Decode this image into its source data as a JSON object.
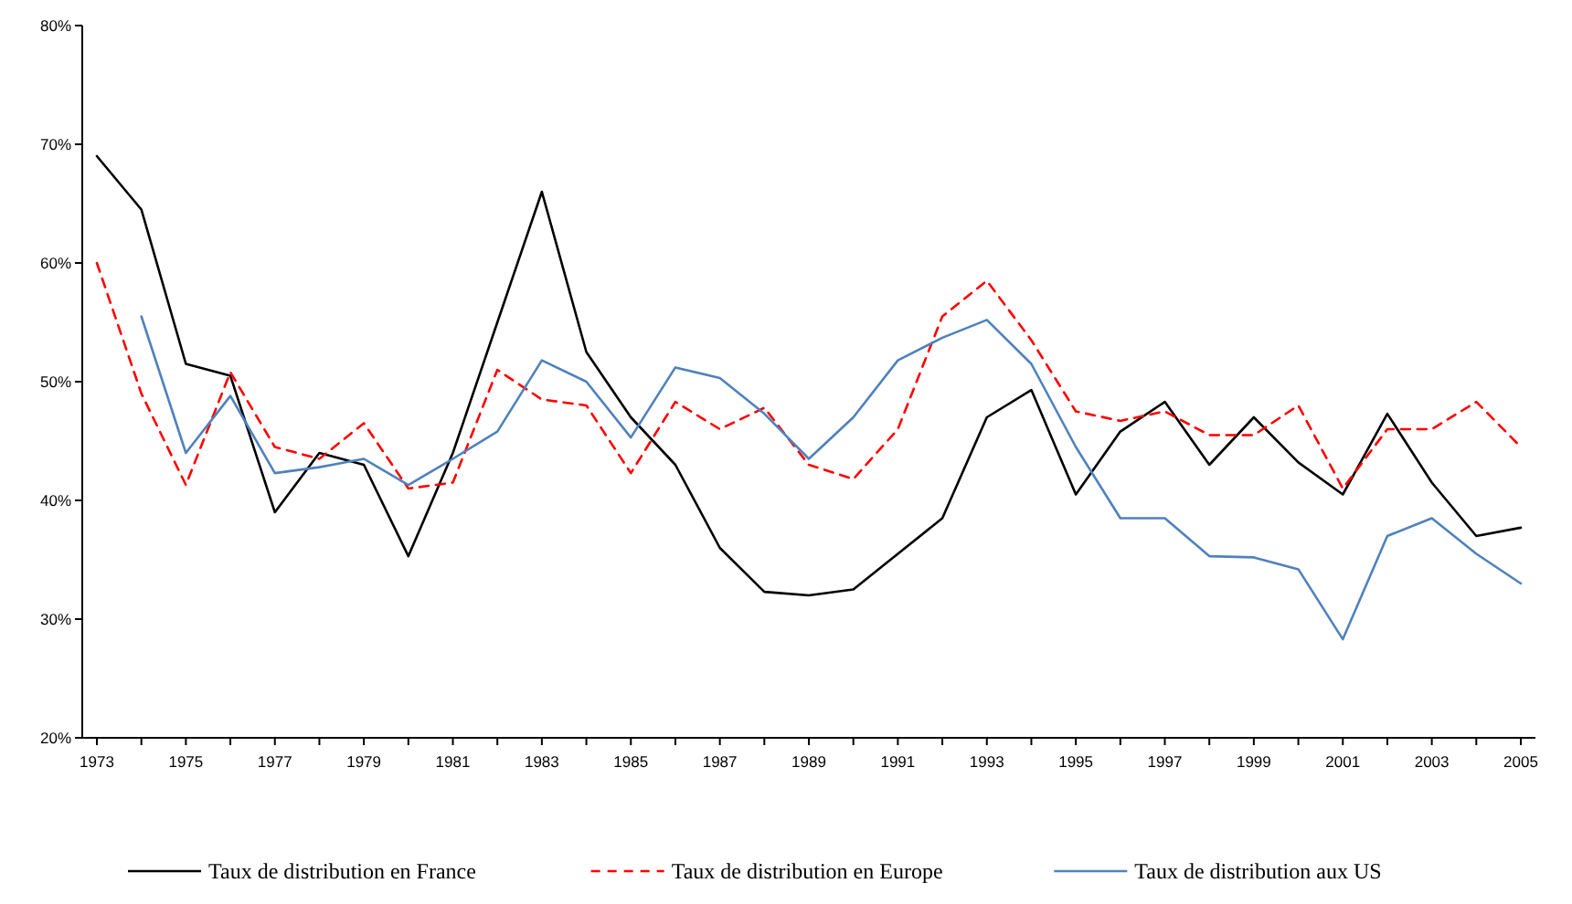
{
  "chart_data": {
    "type": "line",
    "categories": [
      "1973",
      null,
      "1975",
      null,
      "1977",
      null,
      "1979",
      null,
      "1981",
      null,
      "1983",
      null,
      "1985",
      null,
      "1987",
      null,
      "1989",
      null,
      "1991",
      null,
      "1993",
      null,
      "1995",
      null,
      "1997",
      null,
      "1999",
      null,
      "2001",
      null,
      "2003",
      null,
      "2005"
    ],
    "ylim": [
      20,
      80
    ],
    "yticks": [
      {
        "value": 20,
        "label": "20%"
      },
      {
        "value": 30,
        "label": "30%"
      },
      {
        "value": 40,
        "label": "40%"
      },
      {
        "value": 50,
        "label": "50%"
      },
      {
        "value": 60,
        "label": "60%"
      },
      {
        "value": 70,
        "label": "70%"
      },
      {
        "value": 80,
        "label": "80%"
      }
    ],
    "grid": false,
    "legend": "bottom",
    "marker": "none",
    "series": [
      {
        "name": "Taux de distribution en France",
        "color": "#000000",
        "line_style": "solid",
        "values": [
          69,
          64.5,
          51.5,
          50.5,
          39,
          44,
          43,
          35.3,
          44,
          55,
          66,
          52.5,
          47,
          43,
          36,
          32.3,
          32,
          32.5,
          35.5,
          38.5,
          47,
          49.3,
          40.5,
          45.8,
          48.3,
          43,
          47,
          43.2,
          40.5,
          47.3,
          41.5,
          37,
          37.7
        ]
      },
      {
        "name": "Taux de distribution en Europe",
        "color": "#ff0000",
        "line_style": "dashed",
        "values": [
          60,
          49,
          41.3,
          50.8,
          44.5,
          43.5,
          46.5,
          41,
          41.5,
          51,
          48.5,
          48,
          42.3,
          48.3,
          46,
          47.8,
          43,
          41.8,
          46,
          55.5,
          58.5,
          53.5,
          47.5,
          46.7,
          47.5,
          45.5,
          45.5,
          48,
          41,
          46,
          46,
          48.3,
          44.5
        ]
      },
      {
        "name": "Taux de distribution aux US",
        "color": "#4f81bd",
        "line_style": "solid",
        "values": [
          null,
          55.5,
          44,
          48.8,
          42.3,
          42.8,
          43.5,
          41.3,
          43.5,
          45.8,
          51.8,
          50,
          45.3,
          51.2,
          50.3,
          47.3,
          43.5,
          47,
          51.8,
          53.7,
          55.2,
          51.5,
          44.5,
          38.5,
          38.5,
          35.3,
          35.2,
          34.2,
          28.3,
          37,
          38.5,
          35.5,
          33
        ]
      }
    ]
  }
}
